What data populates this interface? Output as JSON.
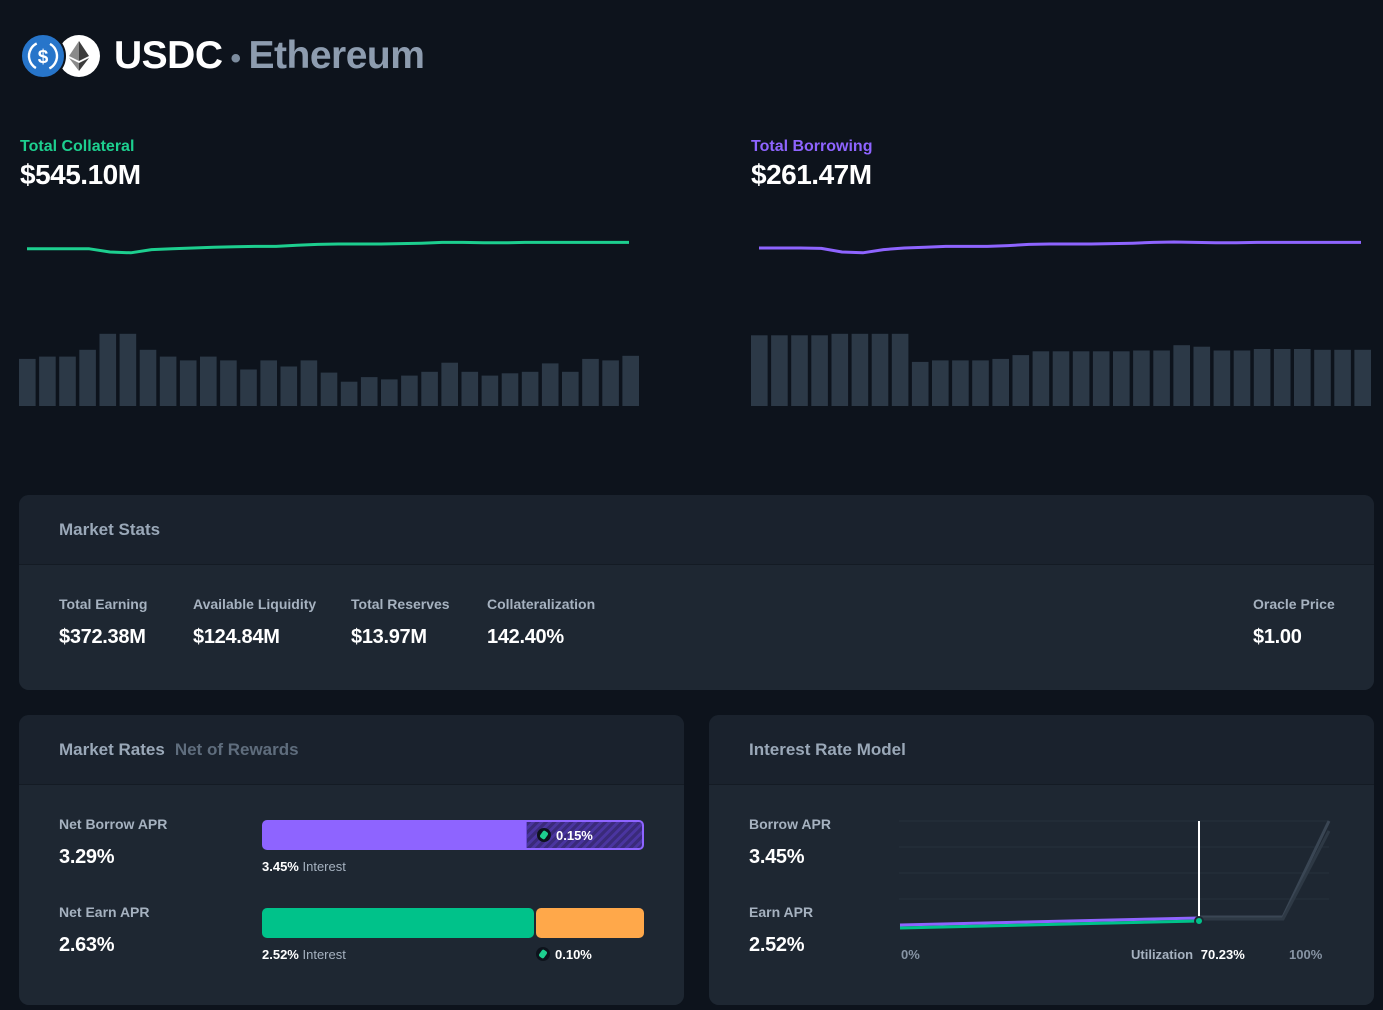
{
  "header": {
    "asset": "USDC",
    "separator": "•",
    "network": "Ethereum",
    "asset_icon": "usdc-coin-icon",
    "network_icon": "ethereum-icon"
  },
  "top_stats": {
    "collateral": {
      "label": "Total Collateral",
      "value": "$545.10M",
      "color": "#1dcf8f"
    },
    "borrowing": {
      "label": "Total Borrowing",
      "value": "$261.47M",
      "color": "#8e64ff"
    }
  },
  "sparklines": {
    "collateral_line": [
      0.78,
      0.78,
      0.78,
      0.78,
      0.7,
      0.68,
      0.76,
      0.78,
      0.8,
      0.82,
      0.83,
      0.84,
      0.84,
      0.87,
      0.89,
      0.9,
      0.9,
      0.9,
      0.91,
      0.92,
      0.94,
      0.94,
      0.93,
      0.93,
      0.94,
      0.94,
      0.94,
      0.94,
      0.94,
      0.94
    ],
    "collateral_bars": [
      0.62,
      0.65,
      0.65,
      0.74,
      0.95,
      0.95,
      0.74,
      0.65,
      0.6,
      0.65,
      0.6,
      0.48,
      0.6,
      0.52,
      0.6,
      0.44,
      0.32,
      0.38,
      0.35,
      0.4,
      0.45,
      0.57,
      0.45,
      0.4,
      0.43,
      0.45,
      0.56,
      0.45,
      0.62,
      0.6,
      0.66
    ],
    "borrowing_line": [
      0.8,
      0.8,
      0.8,
      0.79,
      0.7,
      0.68,
      0.76,
      0.8,
      0.82,
      0.84,
      0.84,
      0.84,
      0.86,
      0.89,
      0.9,
      0.9,
      0.9,
      0.91,
      0.92,
      0.94,
      0.95,
      0.94,
      0.93,
      0.93,
      0.94,
      0.94,
      0.94,
      0.94,
      0.94,
      0.94
    ],
    "borrowing_bars": [
      0.93,
      0.93,
      0.93,
      0.93,
      0.95,
      0.95,
      0.95,
      0.95,
      0.58,
      0.6,
      0.6,
      0.6,
      0.62,
      0.67,
      0.72,
      0.72,
      0.72,
      0.72,
      0.72,
      0.73,
      0.73,
      0.8,
      0.78,
      0.73,
      0.73,
      0.75,
      0.75,
      0.75,
      0.74,
      0.74,
      0.74
    ]
  },
  "market_stats": {
    "title": "Market Stats",
    "items": [
      {
        "label": "Total Earning",
        "value": "$372.38M"
      },
      {
        "label": "Available Liquidity",
        "value": "$124.84M"
      },
      {
        "label": "Total Reserves",
        "value": "$13.97M"
      },
      {
        "label": "Collateralization",
        "value": "142.40%"
      },
      {
        "label": "Oracle Price",
        "value": "$1.00"
      }
    ]
  },
  "market_rates": {
    "title": "Market Rates",
    "subtitle": "Net of Rewards",
    "borrow": {
      "label": "Net Borrow APR",
      "value": "3.29%",
      "interest_value": "3.45%",
      "interest_label": "Interest",
      "reward": "0.15%",
      "reward_icon": "comp-token-icon",
      "color": "#8e64ff"
    },
    "earn": {
      "label": "Net Earn APR",
      "value": "2.63%",
      "interest_value": "2.52%",
      "interest_label": "Interest",
      "reward": "0.10%",
      "reward_icon": "comp-token-icon",
      "color": "#00c28a",
      "reward_color": "#ffa84a"
    }
  },
  "interest_rate_model": {
    "title": "Interest Rate Model",
    "borrow_label": "Borrow APR",
    "borrow_value": "3.45%",
    "earn_label": "Earn APR",
    "earn_value": "2.52%",
    "x_start": "0%",
    "x_end": "100%",
    "utilization_label": "Utilization",
    "utilization_value": "70.23%",
    "utilization": 0.7023
  }
}
